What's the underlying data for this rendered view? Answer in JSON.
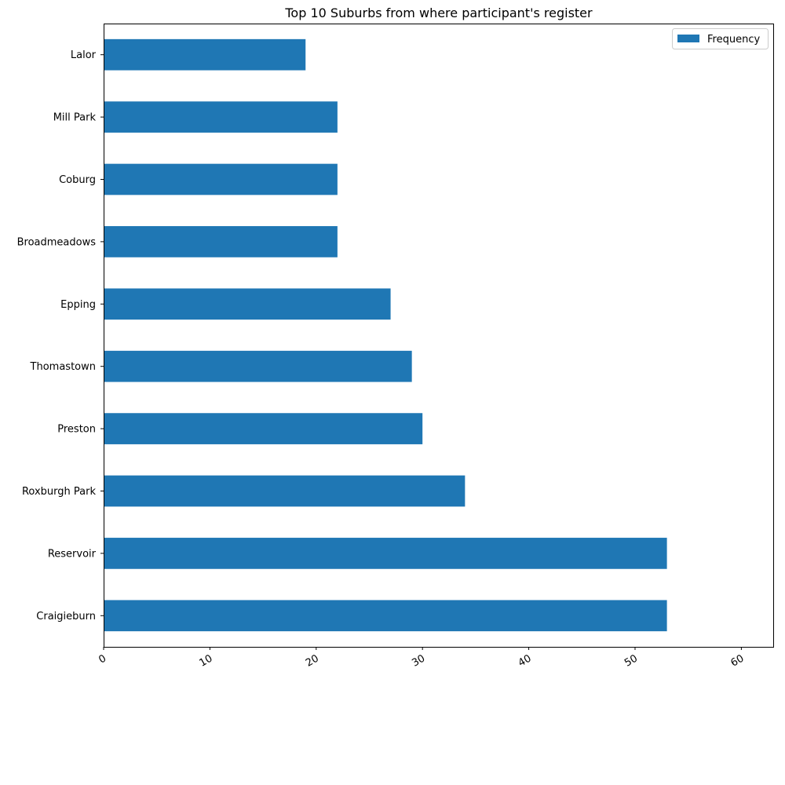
{
  "chart_data": {
    "type": "bar",
    "orientation": "horizontal",
    "title": "Top 10 Suburbs from where participant's register",
    "xlabel": "",
    "ylabel": "",
    "categories": [
      "Craigieburn",
      "Reservoir",
      "Roxburgh Park",
      "Preston",
      "Thomastown",
      "Epping",
      "Broadmeadows",
      "Coburg",
      "Mill Park",
      "Lalor"
    ],
    "series": [
      {
        "name": "Frequency",
        "values": [
          53,
          53,
          34,
          30,
          29,
          27,
          22,
          22,
          22,
          19
        ],
        "color": "#1f77b4"
      }
    ],
    "xlim": [
      0,
      63
    ],
    "xticks": [
      "0",
      "10",
      "20",
      "30",
      "40",
      "50",
      "60"
    ],
    "grid": false,
    "legend_position": "top-right"
  }
}
